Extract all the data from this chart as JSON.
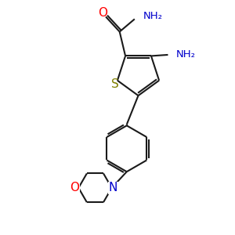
{
  "bg_color": "#ffffff",
  "bond_color": "#1a1a1a",
  "s_color": "#808000",
  "o_color": "#ff0000",
  "n_color": "#0000cc",
  "line_width": 1.5,
  "figsize": [
    3.0,
    3.0
  ],
  "dpi": 100,
  "xlim": [
    0,
    10
  ],
  "ylim": [
    0,
    10
  ]
}
